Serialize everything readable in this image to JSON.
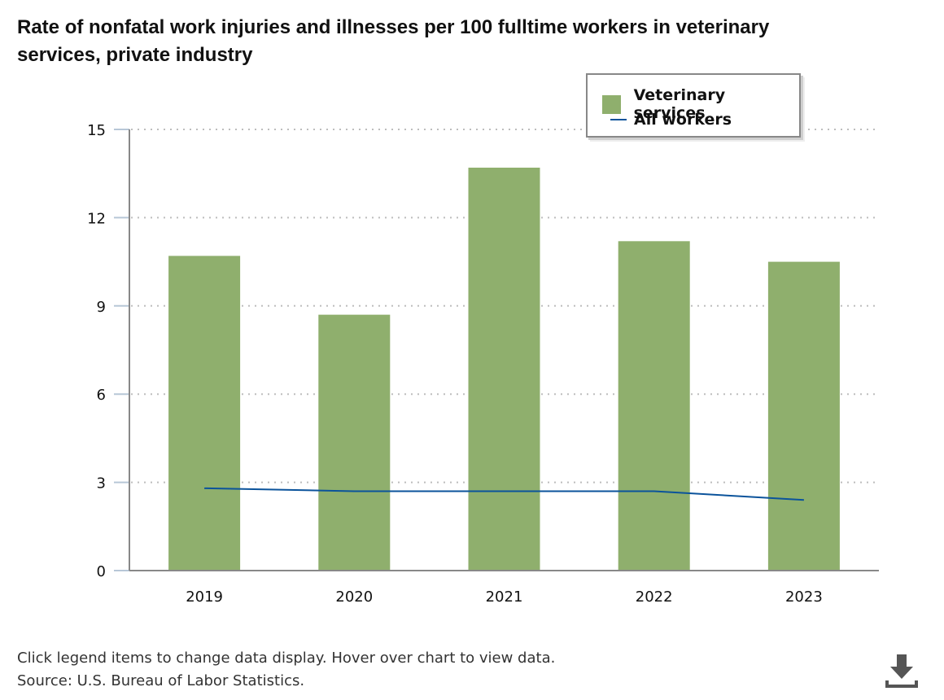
{
  "title": "Rate of nonfatal work injuries and illnesses per 100 fulltime workers in veterinary services, private industry",
  "legend": {
    "items": [
      {
        "label": "Veterinary services",
        "type": "bar",
        "color": "#8faf6d"
      },
      {
        "label": "All workers",
        "type": "line",
        "color": "#0b539b"
      }
    ]
  },
  "footer": {
    "line1": "Click legend items to change data display. Hover over chart to view data.",
    "line2": "Source: U.S. Bureau of Labor Statistics."
  },
  "download_icon": "download-icon",
  "colors": {
    "bar": "#8faf6d",
    "line": "#0b539b",
    "axis": "#888888",
    "grid": "#bdbdbd",
    "tick": "#b7c7d7"
  },
  "chart_data": {
    "type": "bar",
    "title": "Rate of nonfatal work injuries and illnesses per 100 fulltime workers in veterinary services, private industry",
    "categories": [
      "2019",
      "2020",
      "2021",
      "2022",
      "2023"
    ],
    "series": [
      {
        "name": "Veterinary services",
        "type": "bar",
        "values": [
          10.7,
          8.7,
          13.7,
          11.2,
          10.5
        ]
      },
      {
        "name": "All workers",
        "type": "line",
        "values": [
          2.8,
          2.7,
          2.7,
          2.7,
          2.4
        ]
      }
    ],
    "xlabel": "",
    "ylabel": "",
    "ylim": [
      0,
      15
    ],
    "yticks": [
      0,
      3,
      6,
      9,
      12,
      15
    ],
    "grid": true,
    "legend_position": "top-right"
  }
}
